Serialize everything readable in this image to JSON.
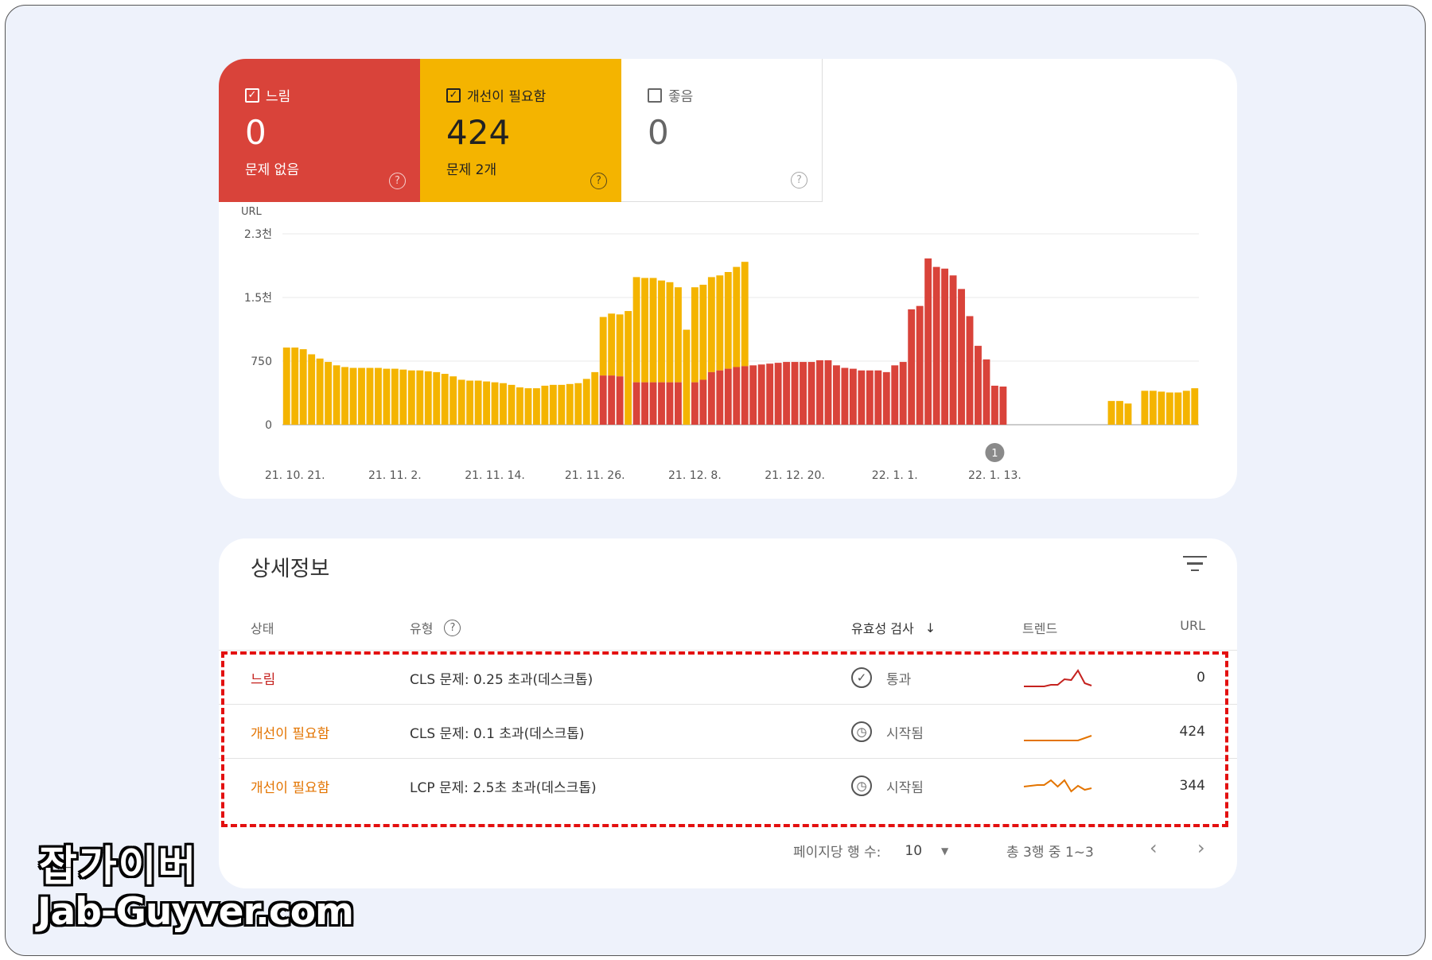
{
  "tiles": [
    {
      "label": "느림",
      "count": "0",
      "sub": "문제 없음",
      "checked": true,
      "color": "#d9433a"
    },
    {
      "label": "개선이 필요함",
      "count": "424",
      "sub": "문제 2개",
      "checked": true,
      "color": "#f4b400"
    },
    {
      "label": "좋음",
      "count": "0",
      "sub": "",
      "checked": false,
      "color": "#ffffff"
    }
  ],
  "chart_data": {
    "type": "bar",
    "stacked": true,
    "ylabel": "URL",
    "y_ticks": [
      "0",
      "750",
      "1.5천",
      "2.3천"
    ],
    "y_tick_values": [
      0,
      750,
      1500,
      2250
    ],
    "ylim": [
      0,
      2250
    ],
    "x_tick_labels": [
      "21. 10. 21.",
      "21. 11. 2.",
      "21. 11. 14.",
      "21. 11. 26.",
      "21. 12. 8.",
      "21. 12. 20.",
      "22. 1. 1.",
      "22. 1. 13."
    ],
    "x_tick_index": [
      1,
      13,
      25,
      37,
      49,
      61,
      73,
      85
    ],
    "annotation": {
      "label": "1",
      "index": 85
    },
    "series": [
      {
        "name": "느림",
        "color": "#d9433a",
        "values": [
          0,
          0,
          0,
          0,
          0,
          0,
          0,
          0,
          0,
          0,
          0,
          0,
          0,
          0,
          0,
          0,
          0,
          0,
          0,
          0,
          0,
          0,
          0,
          0,
          0,
          0,
          0,
          0,
          0,
          0,
          0,
          0,
          0,
          0,
          0,
          0,
          0,
          0,
          580,
          580,
          570,
          0,
          500,
          500,
          500,
          500,
          500,
          500,
          0,
          500,
          530,
          620,
          640,
          660,
          680,
          690,
          700,
          710,
          720,
          730,
          740,
          740,
          740,
          740,
          760,
          760,
          700,
          670,
          660,
          640,
          640,
          640,
          620,
          700,
          740,
          1360,
          1400,
          1960,
          1860,
          1840,
          1760,
          1600,
          1280,
          930,
          770,
          460,
          450,
          0,
          0,
          0,
          0,
          0,
          0
        ],
        "index_note": "per-day values"
      },
      {
        "name": "개선이 필요함",
        "color": "#f4b400",
        "values": [
          910,
          910,
          890,
          830,
          780,
          740,
          700,
          680,
          670,
          670,
          670,
          670,
          660,
          660,
          650,
          640,
          640,
          630,
          620,
          600,
          570,
          530,
          520,
          520,
          510,
          500,
          490,
          470,
          440,
          430,
          430,
          460,
          470,
          470,
          480,
          490,
          540,
          620,
          690,
          730,
          730,
          1340,
          1240,
          1230,
          1230,
          1200,
          1180,
          1120,
          1120,
          1120,
          1120,
          1120,
          1120,
          1140,
          1180,
          1230,
          0,
          0,
          0,
          0,
          0,
          0,
          0,
          0,
          0,
          0,
          0,
          0,
          0,
          0,
          0,
          0,
          0,
          0,
          0,
          0,
          0,
          0,
          0,
          0,
          0,
          0,
          0,
          0,
          0,
          0,
          0,
          0,
          0,
          0,
          0,
          0,
          0,
          0,
          0,
          0,
          0,
          0,
          0,
          280,
          280,
          250,
          0,
          400,
          400,
          390,
          380,
          380,
          400,
          430
        ]
      }
    ]
  },
  "details": {
    "title": "상세정보",
    "columns": {
      "status": "상태",
      "type": "유형",
      "validation": "유효성 검사",
      "trend": "트렌드",
      "url": "URL"
    },
    "rows": [
      {
        "status": "느림",
        "status_kind": "poor",
        "type": "CLS 문제: 0.25 초과(데스크톱)",
        "validation_icon": "check-circle-icon",
        "validation": "통과",
        "trend_color": "#c5221f",
        "trend_points": [
          0,
          0,
          0,
          0,
          0.1,
          0.1,
          0.45,
          0.4,
          1,
          0.2,
          0.05
        ],
        "url": "0"
      },
      {
        "status": "개선이 필요함",
        "status_kind": "ni",
        "type": "CLS 문제: 0.1 초과(데스크톱)",
        "validation_icon": "clock-icon",
        "validation": "시작됨",
        "trend_color": "#e37400",
        "trend_points": [
          0,
          0,
          0,
          0,
          0,
          0,
          0,
          0,
          0,
          0.15,
          0.3
        ],
        "url": "424"
      },
      {
        "status": "개선이 필요함",
        "status_kind": "ni",
        "type": "LCP 문제: 2.5초 초과(데스크톱)",
        "validation_icon": "clock-icon",
        "validation": "시작됨",
        "trend_color": "#e37400",
        "trend_points": [
          0.5,
          0.55,
          0.6,
          0.6,
          0.9,
          0.5,
          0.9,
          0.2,
          0.55,
          0.3,
          0.4
        ],
        "url": "344"
      }
    ],
    "footer": {
      "rows_per_page_label": "페이지당 행 수:",
      "rows_per_page": "10",
      "range": "총 3행 중 1~3"
    }
  },
  "watermark": {
    "line1": "잡가이버",
    "line2": "Jab-Guyver.com"
  }
}
